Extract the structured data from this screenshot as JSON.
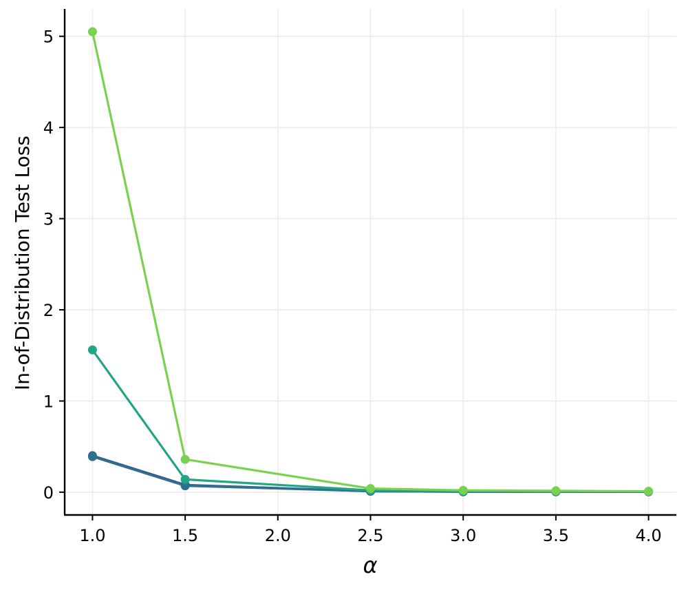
{
  "chart_data": {
    "type": "line",
    "xlabel": "α",
    "ylabel": "In-of-Distribution Test Loss",
    "xlim": [
      0.85,
      4.15
    ],
    "ylim": [
      -0.25,
      5.3
    ],
    "xticks": [
      1.0,
      1.5,
      2.0,
      2.5,
      3.0,
      3.5,
      4.0
    ],
    "xtick_labels": [
      "1.0",
      "1.5",
      "2.0",
      "2.5",
      "3.0",
      "3.5",
      "4.0"
    ],
    "yticks": [
      0,
      1,
      2,
      3,
      4,
      5
    ],
    "ytick_labels": [
      "0",
      "1",
      "2",
      "3",
      "4",
      "5"
    ],
    "grid": true,
    "x": [
      1.0,
      1.5,
      2.5,
      3.0,
      3.5,
      4.0
    ],
    "series": [
      {
        "color": "#3b528b",
        "values": [
          0.4,
          0.08,
          0.01,
          0.005,
          0.005,
          0.005
        ]
      },
      {
        "color": "#2c728e",
        "values": [
          0.39,
          0.07,
          0.01,
          0.005,
          0.005,
          0.005
        ]
      },
      {
        "color": "#21a585",
        "values": [
          1.56,
          0.14,
          0.02,
          0.01,
          0.01,
          0.01
        ]
      },
      {
        "color": "#7ad151",
        "values": [
          5.05,
          0.36,
          0.04,
          0.02,
          0.015,
          0.01
        ]
      }
    ]
  }
}
